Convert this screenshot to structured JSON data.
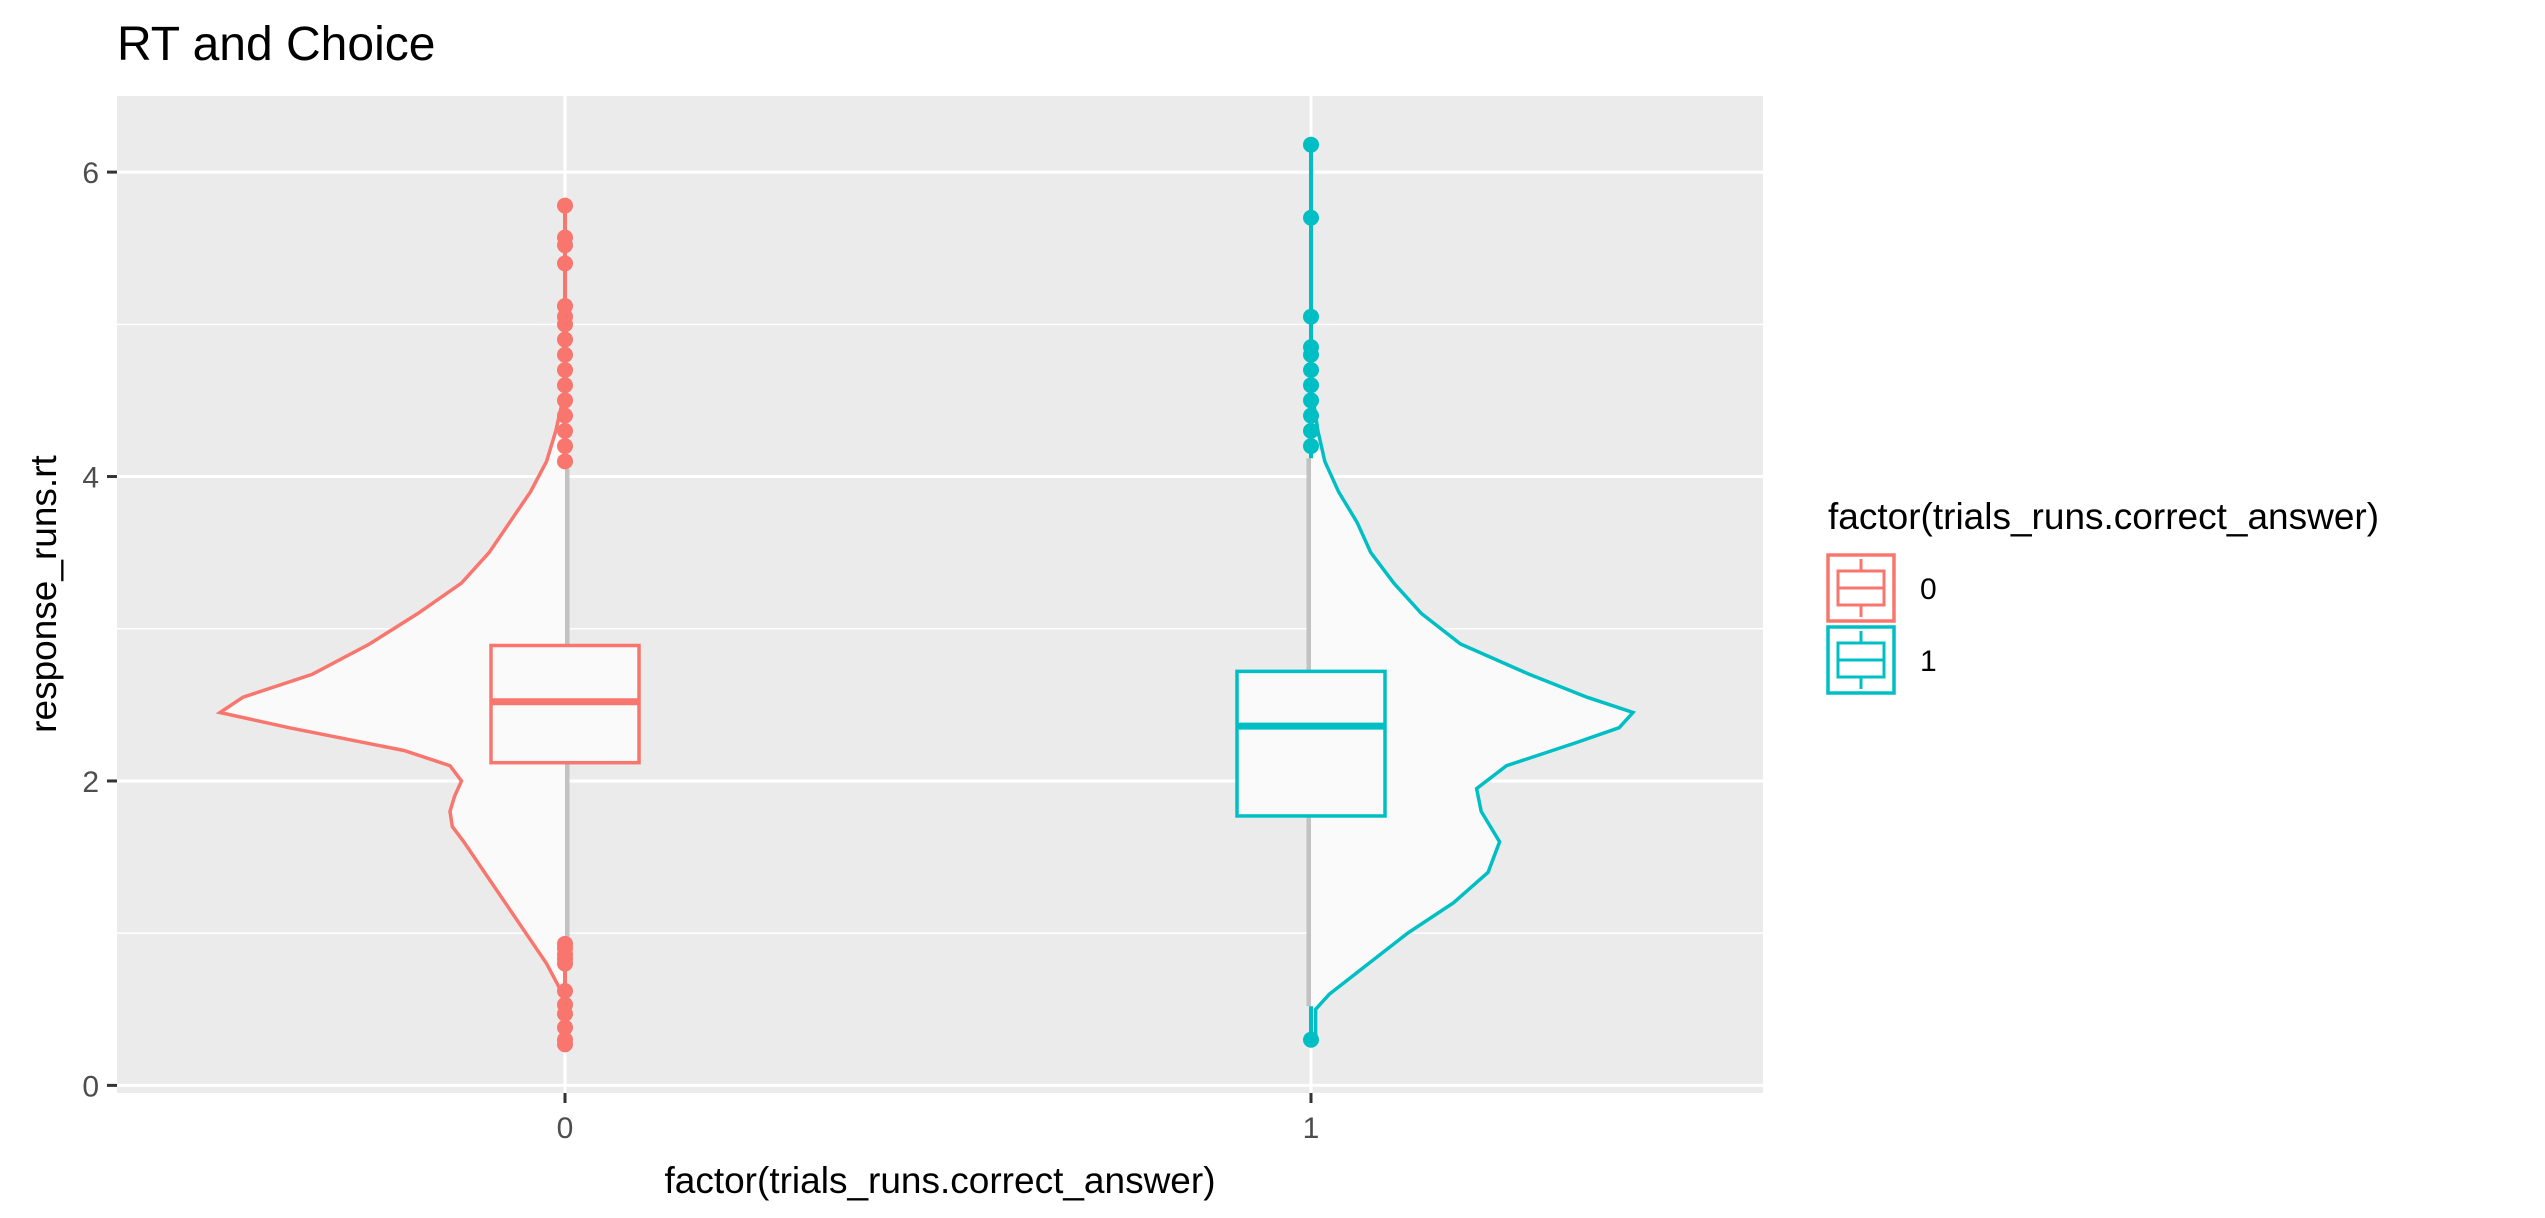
{
  "chart_data": {
    "type": "violin",
    "title": "RT and Choice",
    "xlabel": "factor(trials_runs.correct_answer)",
    "ylabel": "response_runs.rt",
    "categories": [
      "0",
      "1"
    ],
    "ylim": [
      -0.05,
      6.5
    ],
    "yticks": [
      0,
      2,
      4,
      6
    ],
    "grid": true,
    "legend": {
      "title": "factor(trials_runs.correct_answer)",
      "position": "right",
      "entries": [
        "0",
        "1"
      ]
    },
    "series": [
      {
        "name": "0",
        "color": "#f8766d",
        "violin_side": "left",
        "box": {
          "q1": 2.12,
          "median": 2.52,
          "q3": 2.89,
          "whisker_low": 0.95,
          "whisker_high": 4.05
        },
        "outliers": [
          0.27,
          0.3,
          0.38,
          0.47,
          0.53,
          0.62,
          0.8,
          0.83,
          0.86,
          0.9,
          0.93,
          4.1,
          4.2,
          4.3,
          4.4,
          4.5,
          4.6,
          4.7,
          4.8,
          4.9,
          5.0,
          5.05,
          5.12,
          5.4,
          5.52,
          5.57,
          5.78
        ],
        "density": [
          [
            0.6,
            0.01
          ],
          [
            0.8,
            0.08
          ],
          [
            1.0,
            0.17
          ],
          [
            1.2,
            0.26
          ],
          [
            1.4,
            0.35
          ],
          [
            1.6,
            0.44
          ],
          [
            1.7,
            0.49
          ],
          [
            1.8,
            0.5
          ],
          [
            1.9,
            0.48
          ],
          [
            2.0,
            0.45
          ],
          [
            2.1,
            0.5
          ],
          [
            2.2,
            0.7
          ],
          [
            2.35,
            1.2
          ],
          [
            2.45,
            1.5
          ],
          [
            2.55,
            1.4
          ],
          [
            2.7,
            1.1
          ],
          [
            2.9,
            0.85
          ],
          [
            3.1,
            0.64
          ],
          [
            3.3,
            0.45
          ],
          [
            3.5,
            0.33
          ],
          [
            3.7,
            0.24
          ],
          [
            3.9,
            0.15
          ],
          [
            4.1,
            0.08
          ],
          [
            4.3,
            0.04
          ],
          [
            4.5,
            0.01
          ]
        ]
      },
      {
        "name": "1",
        "color": "#00bfc4",
        "violin_side": "right",
        "box": {
          "q1": 1.77,
          "median": 2.36,
          "q3": 2.72,
          "whisker_low": 0.52,
          "whisker_high": 4.12
        },
        "outliers": [
          0.3,
          4.2,
          4.3,
          4.4,
          4.5,
          4.6,
          4.7,
          4.8,
          4.85,
          5.05,
          5.7,
          6.18
        ],
        "density": [
          [
            0.3,
            0.02
          ],
          [
            0.5,
            0.02
          ],
          [
            0.6,
            0.08
          ],
          [
            0.8,
            0.25
          ],
          [
            1.0,
            0.42
          ],
          [
            1.2,
            0.62
          ],
          [
            1.4,
            0.77
          ],
          [
            1.6,
            0.82
          ],
          [
            1.8,
            0.74
          ],
          [
            1.95,
            0.72
          ],
          [
            2.1,
            0.85
          ],
          [
            2.25,
            1.15
          ],
          [
            2.35,
            1.34
          ],
          [
            2.45,
            1.4
          ],
          [
            2.55,
            1.2
          ],
          [
            2.7,
            0.95
          ],
          [
            2.9,
            0.65
          ],
          [
            3.1,
            0.48
          ],
          [
            3.3,
            0.36
          ],
          [
            3.5,
            0.26
          ],
          [
            3.7,
            0.2
          ],
          [
            3.9,
            0.12
          ],
          [
            4.1,
            0.06
          ],
          [
            4.3,
            0.03
          ],
          [
            4.5,
            0.01
          ]
        ]
      }
    ]
  }
}
